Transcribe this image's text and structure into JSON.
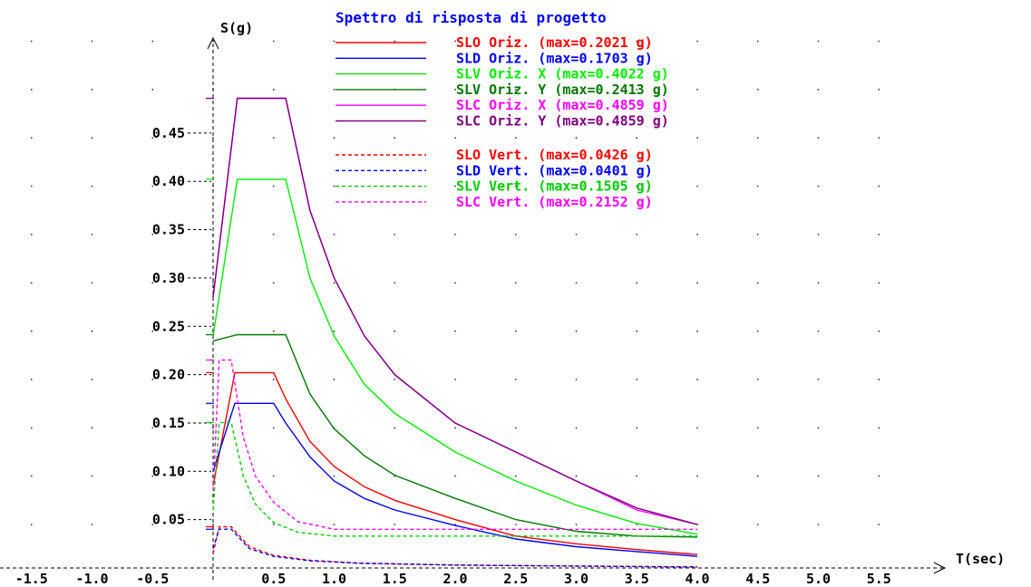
{
  "chart_data": {
    "type": "line",
    "title": "Spettro di risposta di progetto",
    "xlabel": "T(sec)",
    "ylabel": "S(g)",
    "xlim": [
      -1.5,
      5.5
    ],
    "ylim": [
      0,
      0.5
    ],
    "x_ticks": [
      "-1.5",
      "-1.0",
      "-0.5",
      "0.5",
      "1.0",
      "1.5",
      "2.0",
      "2.5",
      "3.0",
      "3.5",
      "4.0",
      "4.5",
      "5.0",
      "5.5"
    ],
    "x_tick_values": [
      -1.5,
      -1.0,
      -0.5,
      0.5,
      1.0,
      1.5,
      2.0,
      2.5,
      3.0,
      3.5,
      4.0,
      4.5,
      5.0,
      5.5
    ],
    "y_ticks": [
      "0.05",
      "0.10",
      "0.15",
      "0.20",
      "0.25",
      "0.30",
      "0.35",
      "0.40",
      "0.45"
    ],
    "y_tick_values": [
      0.05,
      0.1,
      0.15,
      0.2,
      0.25,
      0.3,
      0.35,
      0.4,
      0.45
    ],
    "grid": "dotted",
    "legend_position": "top",
    "series": [
      {
        "label": "SLO Oriz.",
        "max_text": "(max=0.2021 g)",
        "color": "#ff0000",
        "dashed": false,
        "x": [
          0,
          0.18,
          0.5,
          0.6,
          0.8,
          1.0,
          1.25,
          1.5,
          2.0,
          2.5,
          3.0,
          3.5,
          4.0
        ],
        "y": [
          0.085,
          0.2021,
          0.2021,
          0.175,
          0.131,
          0.105,
          0.084,
          0.07,
          0.05,
          0.033,
          0.025,
          0.019,
          0.014
        ]
      },
      {
        "label": "SLD Oriz.",
        "max_text": "(max=0.1703 g)",
        "color": "#0000ff",
        "dashed": false,
        "x": [
          0,
          0.18,
          0.5,
          0.6,
          0.8,
          1.0,
          1.25,
          1.5,
          2.0,
          2.5,
          3.0,
          3.5,
          4.0
        ],
        "y": [
          0.1,
          0.1703,
          0.1703,
          0.15,
          0.115,
          0.09,
          0.072,
          0.06,
          0.044,
          0.03,
          0.022,
          0.017,
          0.012
        ]
      },
      {
        "label": "SLV Oriz. X",
        "max_text": "(max=0.4022 g)",
        "color": "#00ee00",
        "dashed": false,
        "x": [
          0,
          0.2,
          0.6,
          0.8,
          1.0,
          1.25,
          1.5,
          2.0,
          2.5,
          3.0,
          3.5,
          4.0
        ],
        "y": [
          0.24,
          0.4022,
          0.4022,
          0.3,
          0.24,
          0.19,
          0.16,
          0.12,
          0.09,
          0.065,
          0.046,
          0.035
        ]
      },
      {
        "label": "SLV Oriz. Y",
        "max_text": "(max=0.2413 g)",
        "color": "#007700",
        "dashed": false,
        "x": [
          0,
          0.2,
          0.6,
          0.8,
          1.0,
          1.25,
          1.5,
          2.0,
          2.5,
          3.0,
          3.5,
          4.0
        ],
        "y": [
          0.235,
          0.2413,
          0.2413,
          0.18,
          0.144,
          0.116,
          0.096,
          0.072,
          0.05,
          0.038,
          0.033,
          0.032
        ]
      },
      {
        "label": "SLC Oriz. X",
        "max_text": "(max=0.4859 g)",
        "color": "#ff00ff",
        "dashed": false,
        "x": [
          0,
          0.2,
          0.6,
          0.8,
          1.0,
          1.25,
          1.5,
          2.0,
          2.5,
          3.0,
          3.5,
          4.0
        ],
        "y": [
          0.28,
          0.4859,
          0.4859,
          0.37,
          0.3,
          0.24,
          0.2,
          0.15,
          0.12,
          0.09,
          0.06,
          0.045
        ]
      },
      {
        "label": "SLC Oriz. Y",
        "max_text": "(max=0.4859 g)",
        "color": "#800080",
        "dashed": false,
        "x": [
          0,
          0.2,
          0.6,
          0.8,
          1.0,
          1.25,
          1.5,
          2.0,
          2.5,
          3.0,
          3.5,
          4.0
        ],
        "y": [
          0.28,
          0.4859,
          0.4859,
          0.37,
          0.3,
          0.24,
          0.2,
          0.15,
          0.12,
          0.09,
          0.062,
          0.045
        ]
      },
      {
        "label": "SLO Vert.",
        "max_text": "(max=0.0426 g)",
        "color": "#ff0000",
        "dashed": true,
        "x": [
          0,
          0.05,
          0.15,
          0.3,
          0.5,
          0.8,
          1.2,
          2.0,
          3.0,
          4.0
        ],
        "y": [
          0.015,
          0.0426,
          0.0426,
          0.022,
          0.013,
          0.008,
          0.005,
          0.003,
          0.002,
          0.001
        ]
      },
      {
        "label": "SLD Vert.",
        "max_text": "(max=0.0401 g)",
        "color": "#0000ff",
        "dashed": true,
        "x": [
          0,
          0.05,
          0.15,
          0.3,
          0.5,
          0.8,
          1.2,
          2.0,
          3.0,
          4.0
        ],
        "y": [
          0.02,
          0.0401,
          0.0401,
          0.02,
          0.012,
          0.0075,
          0.005,
          0.003,
          0.002,
          0.001
        ]
      },
      {
        "label": "SLV Vert.",
        "max_text": "(max=0.1505 g)",
        "color": "#00cc00",
        "dashed": true,
        "x": [
          0,
          0.05,
          0.15,
          0.25,
          0.35,
          0.5,
          0.7,
          1.0,
          4.0
        ],
        "y": [
          0.06,
          0.1505,
          0.1505,
          0.095,
          0.066,
          0.047,
          0.037,
          0.033,
          0.033
        ]
      },
      {
        "label": "SLC Vert.",
        "max_text": "(max=0.2152 g)",
        "color": "#ff00ff",
        "dashed": true,
        "x": [
          0,
          0.05,
          0.15,
          0.25,
          0.35,
          0.5,
          0.7,
          1.0,
          4.0
        ],
        "y": [
          0.08,
          0.2152,
          0.2152,
          0.135,
          0.095,
          0.068,
          0.048,
          0.04,
          0.04
        ]
      }
    ]
  }
}
